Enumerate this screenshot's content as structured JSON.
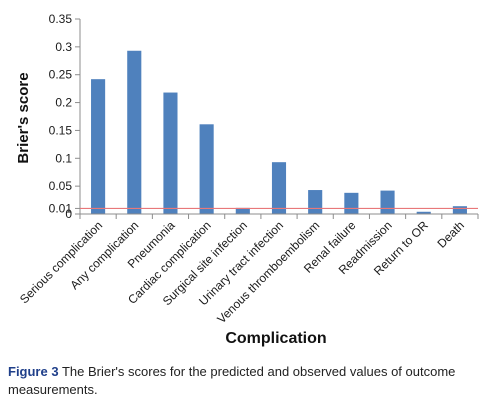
{
  "chart_data": {
    "type": "bar",
    "xlabel": "Complication",
    "ylabel": "Brier's score",
    "categories": [
      "Serious complication",
      "Any complication",
      "Pneumonia",
      "Cardiac complication",
      "Surgical site infection",
      "Urinary tract infection",
      "Venous thromboembolism",
      "Renal failure",
      "Readmission",
      "Return to OR",
      "Death"
    ],
    "values": [
      0.242,
      0.293,
      0.218,
      0.161,
      0.011,
      0.093,
      0.043,
      0.038,
      0.042,
      0.004,
      0.014
    ],
    "ylim": [
      0,
      0.35
    ],
    "yticks": [
      0,
      0.01,
      0.05,
      0.1,
      0.15,
      0.2,
      0.25,
      0.3,
      0.35
    ],
    "ytick_labels": [
      "0",
      "0.01",
      "0.05",
      "0.1",
      "0.15",
      "0.2",
      "0.25",
      "0.3",
      "0.35"
    ],
    "reference_line": 0.01,
    "bar_color": "#4f81bd",
    "reference_line_color": "#e8787a",
    "grid": false,
    "legend": "none"
  },
  "caption": {
    "figure_label": "Figure 3",
    "text": "The Brier's scores for the predicted and observed values of outcome measurements."
  }
}
